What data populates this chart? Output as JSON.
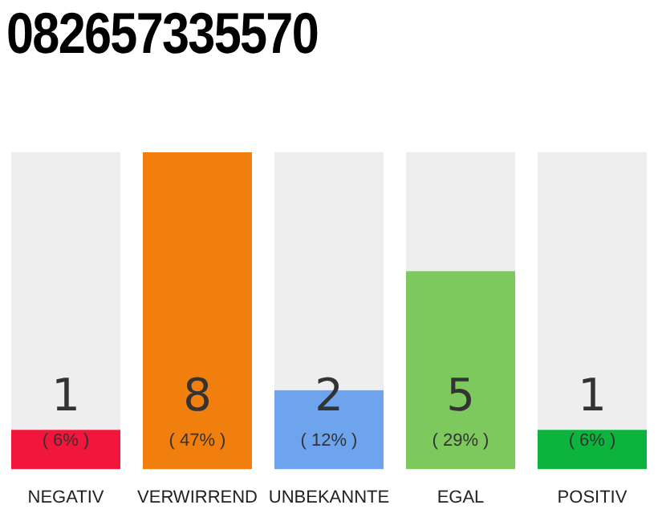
{
  "chart_data": {
    "type": "bar",
    "title": "082657335570",
    "categories": [
      "NEGATIV",
      "VERWIRREND",
      "UNBEKANNTE",
      "EGAL",
      "POSITIV"
    ],
    "values": [
      1,
      8,
      2,
      5,
      1
    ],
    "colors": [
      "#f2163c",
      "#f07f0e",
      "#6ea4ee",
      "#7ec95e",
      "#0cb43e"
    ],
    "value_labels": [
      "1\n( 6% )",
      "8\n( 47% )",
      "2\n( 12% )",
      "5\n( 29% )",
      "1\n( 6% )"
    ],
    "ylim": [
      0,
      8
    ]
  }
}
